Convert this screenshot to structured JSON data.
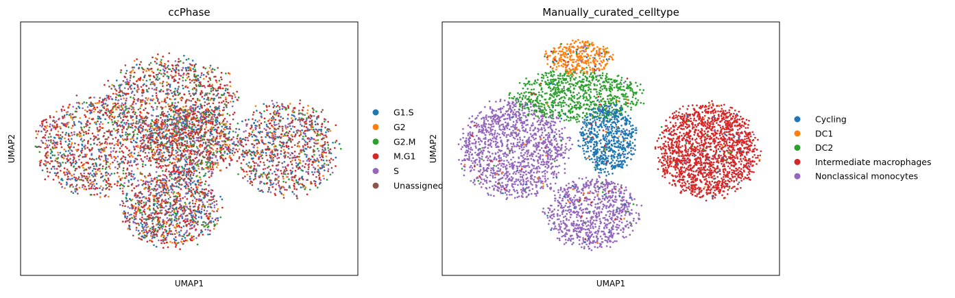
{
  "chart_data": [
    {
      "type": "scatter",
      "title": "ccPhase",
      "xlabel": "UMAP1",
      "ylabel": "UMAP2",
      "ticks": "none",
      "grid": false,
      "legend_position": "right",
      "legend": [
        {
          "label": "G1.S",
          "color": "#1f77b4"
        },
        {
          "label": "G2",
          "color": "#ff7f0e"
        },
        {
          "label": "G2.M",
          "color": "#2ca02c"
        },
        {
          "label": "M.G1",
          "color": "#d62728"
        },
        {
          "label": "S",
          "color": "#9467bd"
        },
        {
          "label": "Unassigned",
          "color": "#8c564b"
        }
      ],
      "point_clusters": [
        {
          "name": "left lobe",
          "cx": -0.62,
          "cy": 0.02,
          "rx": 0.38,
          "ry": 0.42
        },
        {
          "name": "upper-center lobe",
          "cx": -0.12,
          "cy": 0.42,
          "rx": 0.42,
          "ry": 0.38
        },
        {
          "name": "center lobe",
          "cx": 0.0,
          "cy": 0.05,
          "rx": 0.3,
          "ry": 0.3
        },
        {
          "name": "lower-center lobe",
          "cx": -0.12,
          "cy": -0.52,
          "rx": 0.32,
          "ry": 0.32
        },
        {
          "name": "right lobe",
          "cx": 0.62,
          "cy": 0.0,
          "rx": 0.34,
          "ry": 0.4
        }
      ],
      "category_mix": [
        0.17,
        0.11,
        0.1,
        0.3,
        0.14,
        0.18
      ]
    },
    {
      "type": "scatter",
      "title": "Manually_curated_celltype",
      "xlabel": "UMAP1",
      "ylabel": "UMAP2",
      "ticks": "none",
      "grid": false,
      "legend_position": "right",
      "legend": [
        {
          "label": "Cycling",
          "color": "#1f77b4"
        },
        {
          "label": "DC1",
          "color": "#ff7f0e"
        },
        {
          "label": "DC2",
          "color": "#2ca02c"
        },
        {
          "label": "Intermediate macrophages",
          "color": "#d62728"
        },
        {
          "label": "Nonclassical monocytes",
          "color": "#9467bd"
        }
      ],
      "point_clusters": [
        {
          "name": "Cycling",
          "cx": -0.02,
          "cy": 0.08,
          "rx": 0.18,
          "ry": 0.3
        },
        {
          "name": "DC1",
          "cx": -0.2,
          "cy": 0.78,
          "rx": 0.22,
          "ry": 0.14
        },
        {
          "name": "DC2",
          "cx": -0.22,
          "cy": 0.46,
          "rx": 0.42,
          "ry": 0.22
        },
        {
          "name": "Intermediate macrophages",
          "cx": 0.62,
          "cy": -0.02,
          "rx": 0.32,
          "ry": 0.4
        },
        {
          "name": "Nonclassical monocytes (left)",
          "cx": -0.62,
          "cy": 0.0,
          "rx": 0.35,
          "ry": 0.42
        },
        {
          "name": "Nonclassical monocytes (bottom)",
          "cx": -0.12,
          "cy": -0.55,
          "rx": 0.3,
          "ry": 0.3
        }
      ]
    }
  ]
}
